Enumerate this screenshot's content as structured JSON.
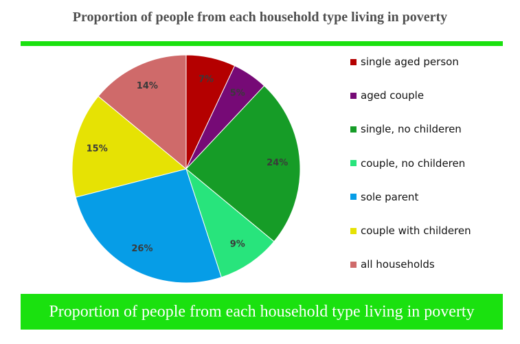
{
  "title": "Proportion of people from each household type living in poverty",
  "banner_text": "Proportion of people from each household type living in poverty",
  "colors": {
    "band": "#1ae10f"
  },
  "chart_data": {
    "type": "pie",
    "slices": [
      {
        "label": "single aged person",
        "value": 7,
        "display": "7%",
        "color": "#b40000"
      },
      {
        "label": "aged couple",
        "value": 5,
        "display": "5%",
        "color": "#760a76"
      },
      {
        "label": "single, no childeren",
        "value": 24,
        "display": "24%",
        "color": "#169c27"
      },
      {
        "label": "couple, no childeren",
        "value": 9,
        "display": "9%",
        "color": "#28e47c"
      },
      {
        "label": "sole parent",
        "value": 26,
        "display": "26%",
        "color": "#069de7"
      },
      {
        "label": "couple with childeren",
        "value": 15,
        "display": "15%",
        "color": "#e6e204"
      },
      {
        "label": "all households",
        "value": 14,
        "display": "14%",
        "color": "#cf6a6a"
      }
    ],
    "legend_position": "right"
  }
}
